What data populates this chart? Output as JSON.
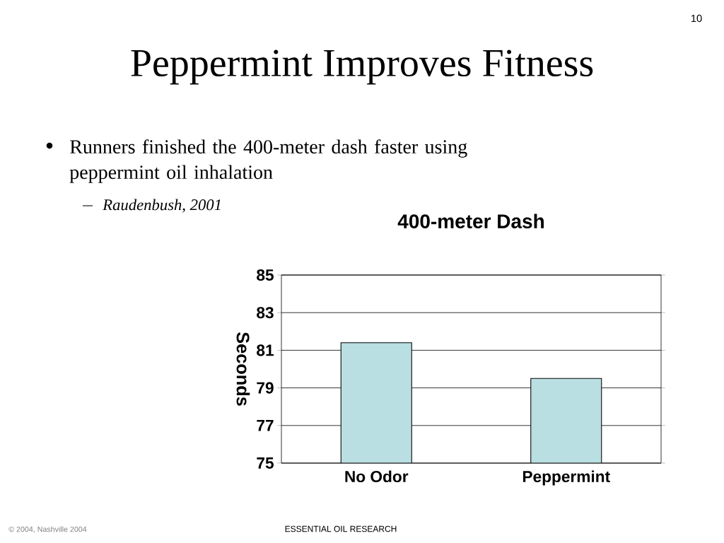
{
  "chart_data": {
    "type": "bar",
    "title": "400-meter Dash",
    "ylabel": "Seconds",
    "categories": [
      "No Odor",
      "Peppermint"
    ],
    "values": [
      81.4,
      79.5
    ],
    "color": "#b9dfe2",
    "ylim": [
      75,
      85
    ],
    "yticks": [
      75,
      77,
      79,
      81,
      83,
      85
    ],
    "grid": "y",
    "annotations": [
      "Peppermint Improves Fitness",
      "Runners finished the 400-meter dash faster using peppermint oil inhalation",
      "Raudenbush, 2001",
      "10",
      "© 2004, Nashville 2004",
      "ESSENTIAL OIL RESEARCH"
    ]
  }
}
